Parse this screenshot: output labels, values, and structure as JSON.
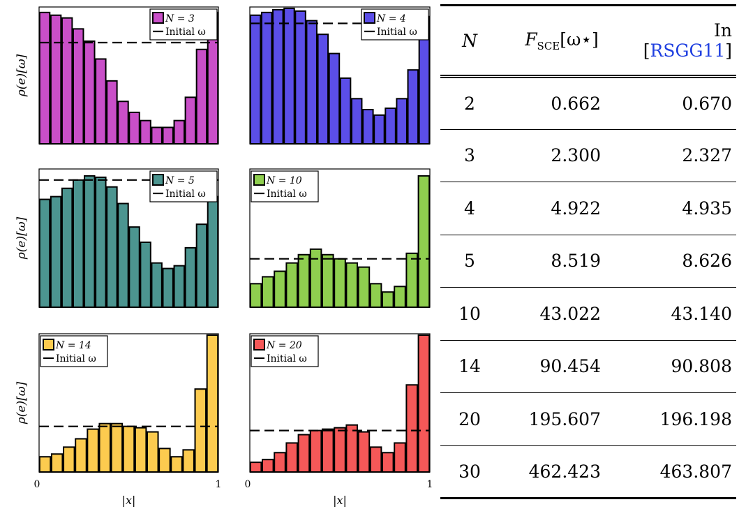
{
  "chart_data": [
    {
      "type": "bar",
      "legend": [
        "N = 3",
        "Initial ω"
      ],
      "legend_position": "top-right",
      "ylabel": "ρ(e)[ω]",
      "color": "#c94fc8",
      "values": [
        0.96,
        0.94,
        0.92,
        0.84,
        0.75,
        0.62,
        0.46,
        0.31,
        0.23,
        0.17,
        0.12,
        0.12,
        0.17,
        0.34,
        0.69,
        0.96
      ],
      "initial_omega": 0.74,
      "ylim": [
        0,
        1
      ]
    },
    {
      "type": "bar",
      "legend": [
        "N = 4",
        "Initial ω"
      ],
      "legend_position": "top-right",
      "color": "#5b4ee8",
      "values": [
        0.94,
        0.96,
        0.98,
        0.99,
        0.97,
        0.9,
        0.8,
        0.66,
        0.48,
        0.33,
        0.25,
        0.21,
        0.26,
        0.33,
        0.54,
        0.93
      ],
      "initial_omega": 0.88,
      "ylim": [
        0,
        1
      ]
    },
    {
      "type": "bar",
      "legend": [
        "N = 5",
        "Initial ω"
      ],
      "legend_position": "top-right",
      "ylabel": "ρ(e)[ω]",
      "color": "#4c9590",
      "values": [
        0.78,
        0.8,
        0.86,
        0.92,
        0.95,
        0.94,
        0.87,
        0.75,
        0.58,
        0.47,
        0.32,
        0.28,
        0.3,
        0.43,
        0.6,
        0.8
      ],
      "initial_omega": 0.92,
      "ylim": [
        0,
        1
      ]
    },
    {
      "type": "bar",
      "legend": [
        "N = 10",
        "Initial ω"
      ],
      "legend_position": "top-left",
      "color": "#8fcf4f",
      "values": [
        0.17,
        0.22,
        0.26,
        0.32,
        0.38,
        0.42,
        0.38,
        0.35,
        0.32,
        0.29,
        0.17,
        0.11,
        0.15,
        0.39,
        0.95
      ],
      "initial_omega": 0.35,
      "ylim": [
        0,
        1
      ]
    },
    {
      "type": "bar",
      "legend": [
        "N = 14",
        "Initial ω"
      ],
      "legend_position": "top-left",
      "ylabel": "ρ(e)[ω]",
      "xlabel": "|x|",
      "color": "#fccb4f",
      "values": [
        0.11,
        0.13,
        0.18,
        0.24,
        0.31,
        0.35,
        0.35,
        0.33,
        0.32,
        0.29,
        0.17,
        0.11,
        0.16,
        0.6,
        0.99
      ],
      "initial_omega": 0.33,
      "ylim": [
        0,
        1
      ],
      "xlim": [
        0,
        1
      ],
      "xticks": [
        "0",
        "1"
      ]
    },
    {
      "type": "bar",
      "legend": [
        "N = 20",
        "Initial ω"
      ],
      "legend_position": "top-left",
      "xlabel": "|x|",
      "color": "#f55858",
      "values": [
        0.07,
        0.09,
        0.14,
        0.21,
        0.27,
        0.3,
        0.31,
        0.32,
        0.34,
        0.29,
        0.18,
        0.14,
        0.21,
        0.63,
        0.99
      ],
      "initial_omega": 0.3,
      "ylim": [
        0,
        1
      ],
      "xlim": [
        0,
        1
      ],
      "xticks": [
        "0",
        "1"
      ]
    },
    {
      "type": "table",
      "columns": [
        "N",
        "F_SCE[ω*]",
        "In [RSGG11]"
      ],
      "rows": [
        [
          "2",
          "0.662",
          "0.670"
        ],
        [
          "3",
          "2.300",
          "2.327"
        ],
        [
          "4",
          "4.922",
          "4.935"
        ],
        [
          "5",
          "8.519",
          "8.626"
        ],
        [
          "10",
          "43.022",
          "43.140"
        ],
        [
          "14",
          "90.454",
          "90.808"
        ],
        [
          "20",
          "195.607",
          "196.198"
        ],
        [
          "30",
          "462.423",
          "463.807"
        ]
      ]
    }
  ],
  "table": {
    "col_n": "N",
    "col_f_main": "F",
    "col_f_sub": "SCE",
    "col_f_arg": "[ω⋆]",
    "col_ref_prefix": "In [",
    "col_ref_cite": "RSGG11",
    "col_ref_suffix": "]",
    "rows": [
      {
        "n": "2",
        "f": "0.662",
        "ref": "0.670"
      },
      {
        "n": "3",
        "f": "2.300",
        "ref": "2.327"
      },
      {
        "n": "4",
        "f": "4.922",
        "ref": "4.935"
      },
      {
        "n": "5",
        "f": "8.519",
        "ref": "8.626"
      },
      {
        "n": "10",
        "f": "43.022",
        "ref": "43.140"
      },
      {
        "n": "14",
        "f": "90.454",
        "ref": "90.808"
      },
      {
        "n": "20",
        "f": "195.607",
        "ref": "196.198"
      },
      {
        "n": "30",
        "f": "462.423",
        "ref": "463.807"
      }
    ]
  },
  "colors": {
    "frame": "#000000",
    "cite_link": "#1f3fe0"
  }
}
